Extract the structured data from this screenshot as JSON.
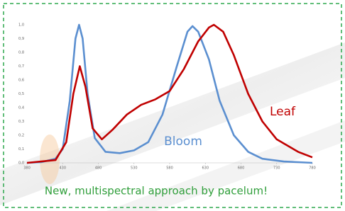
{
  "chart_data": {
    "type": "line",
    "caption": "New, multispectral approach by pacelum!",
    "xlim": [
      380,
      780
    ],
    "ylim": [
      0,
      1
    ],
    "xticks": [
      380,
      430,
      480,
      530,
      580,
      630,
      680,
      730,
      780
    ],
    "yticks": [
      {
        "value": 0,
        "label": "0,0"
      },
      {
        "value": 0.1,
        "label": "0,1"
      },
      {
        "value": 0.2,
        "label": "0,2"
      },
      {
        "value": 0.3,
        "label": "0,3"
      },
      {
        "value": 0.4,
        "label": "0,4"
      },
      {
        "value": 0.5,
        "label": "0,5"
      },
      {
        "value": 0.6,
        "label": "0,6"
      },
      {
        "value": 0.7,
        "label": "0,7"
      },
      {
        "value": 0.8,
        "label": "0,8"
      },
      {
        "value": 0.9,
        "label": "0,9"
      },
      {
        "value": 1,
        "label": "1,0"
      }
    ],
    "series": [
      {
        "name": "Bloom",
        "color": "#5b8fd0",
        "x": [
          380,
          400,
          420,
          430,
          440,
          448,
          453,
          458,
          465,
          475,
          490,
          510,
          530,
          550,
          570,
          590,
          605,
          612,
          620,
          635,
          650,
          670,
          690,
          710,
          740,
          780
        ],
        "values": [
          0,
          0.005,
          0.03,
          0.1,
          0.45,
          0.9,
          1.0,
          0.9,
          0.5,
          0.18,
          0.08,
          0.07,
          0.09,
          0.15,
          0.35,
          0.7,
          0.95,
          0.99,
          0.95,
          0.75,
          0.45,
          0.2,
          0.08,
          0.03,
          0.01,
          0
        ]
      },
      {
        "name": "Leaf",
        "color": "#c00000",
        "x": [
          380,
          420,
          435,
          445,
          454,
          462,
          472,
          485,
          500,
          520,
          540,
          560,
          580,
          600,
          620,
          635,
          642,
          655,
          670,
          690,
          710,
          730,
          760,
          780
        ],
        "values": [
          0,
          0.02,
          0.15,
          0.5,
          0.7,
          0.55,
          0.25,
          0.17,
          0.24,
          0.35,
          0.42,
          0.46,
          0.52,
          0.68,
          0.88,
          0.98,
          1.0,
          0.95,
          0.78,
          0.5,
          0.3,
          0.17,
          0.08,
          0.04
        ]
      }
    ]
  }
}
